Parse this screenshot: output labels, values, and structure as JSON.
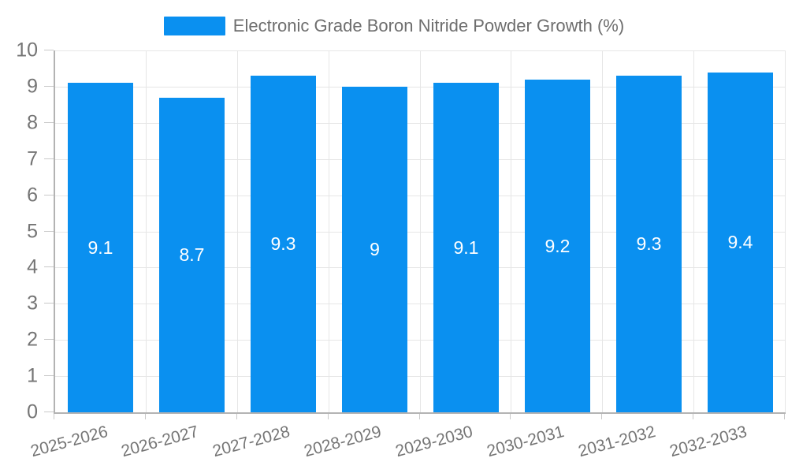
{
  "chart_data": {
    "type": "bar",
    "title": "Electronic Grade Boron Nitride Powder Growth (%)",
    "legend_label": "Electronic Grade Boron Nitride Powder Growth (%)",
    "legend_position": "top",
    "categories": [
      "2025-2026",
      "2026-2027",
      "2027-2028",
      "2028-2029",
      "2029-2030",
      "2030-2031",
      "2031-2032",
      "2032-2033"
    ],
    "values": [
      9.1,
      8.7,
      9.3,
      9,
      9.1,
      9.2,
      9.3,
      9.4
    ],
    "value_labels": [
      "9.1",
      "8.7",
      "9.3",
      "9",
      "9.1",
      "9.2",
      "9.3",
      "9.4"
    ],
    "xlabel": "",
    "ylabel": "",
    "ylim": [
      0,
      10
    ],
    "y_ticks": [
      0,
      1,
      2,
      3,
      4,
      5,
      6,
      7,
      8,
      9,
      10
    ],
    "grid": true,
    "colors": {
      "bar": "#0a90f0",
      "bar_value_text": "#ffffff",
      "axis_text": "#757575",
      "legend_text": "#6e6e6e",
      "gridline": "#e6e6e6",
      "axis_line": "#b3b3b3",
      "tick": "#c9c9c9"
    }
  }
}
